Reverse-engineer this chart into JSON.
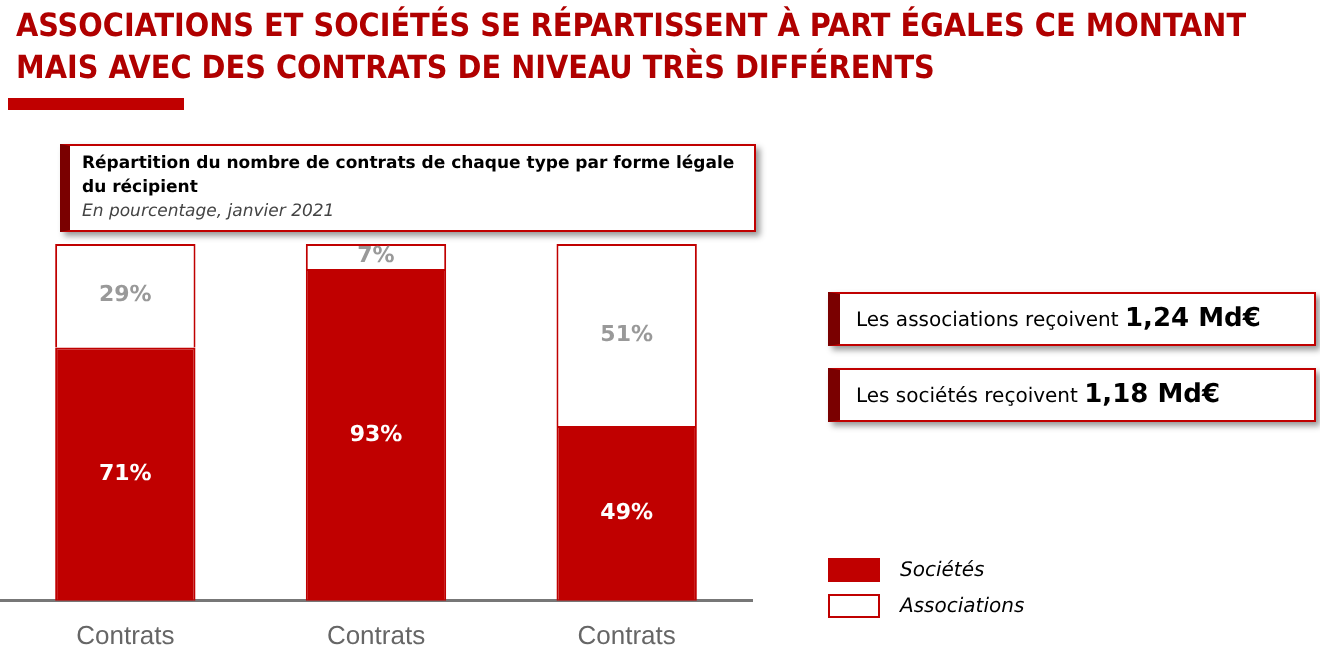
{
  "chart_data": {
    "type": "bar",
    "title": "ASSOCIATIONS ET SOCIÉTÉS SE RÉPARTISSENT À PART ÉGALES CE MONTANT MAIS AVEC DES CONTRATS DE NIVEAU TRÈS DIFFÉRENTS",
    "subtitle": "Répartition du nombre de contrats de chaque type par forme légale du récipient\nEn pourcentage, janvier 2021",
    "categories": [
      "Contrats",
      "Contrats",
      "Contrats"
    ],
    "stacked": true,
    "series": [
      {
        "name": "Sociétés",
        "color": "#c00000",
        "values": [
          71,
          93,
          49
        ],
        "value_labels": [
          "71%",
          "93%",
          "49%"
        ]
      },
      {
        "name": "Associations",
        "color": "#ffffff",
        "values": [
          29,
          7,
          51
        ],
        "value_labels": [
          "29%",
          "7%",
          "51%"
        ]
      }
    ],
    "annotations": [
      "Les associations reçoivent 1,24 Md€",
      "Les sociétés reçoivent 1,18 Md€"
    ],
    "legend": "right",
    "grid": false,
    "tick_labels": "x"
  }
}
